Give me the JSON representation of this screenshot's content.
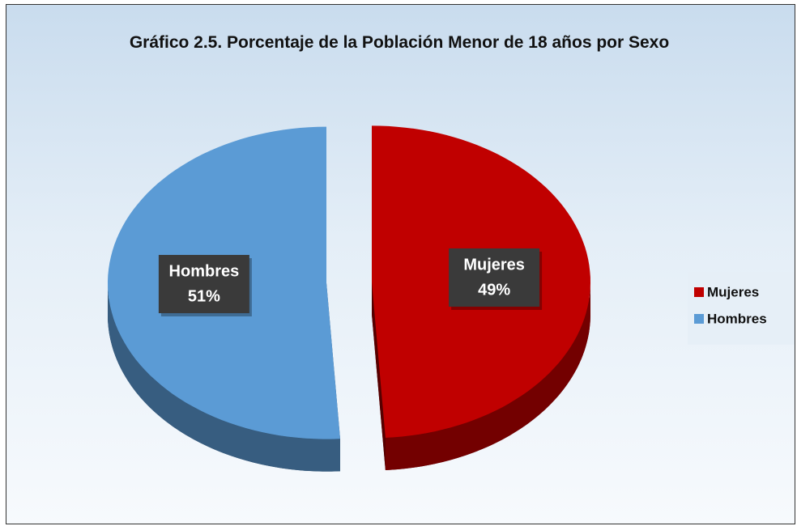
{
  "chart_data": {
    "type": "pie",
    "title": "Gráfico 2.5. Porcentaje de la Población Menor de 18 años por Sexo",
    "categories": [
      "Mujeres",
      "Hombres"
    ],
    "values": [
      49,
      51
    ],
    "value_labels": [
      "49%",
      "51%"
    ],
    "colors": [
      "#c00000",
      "#5b9bd5"
    ],
    "legend": "right"
  }
}
